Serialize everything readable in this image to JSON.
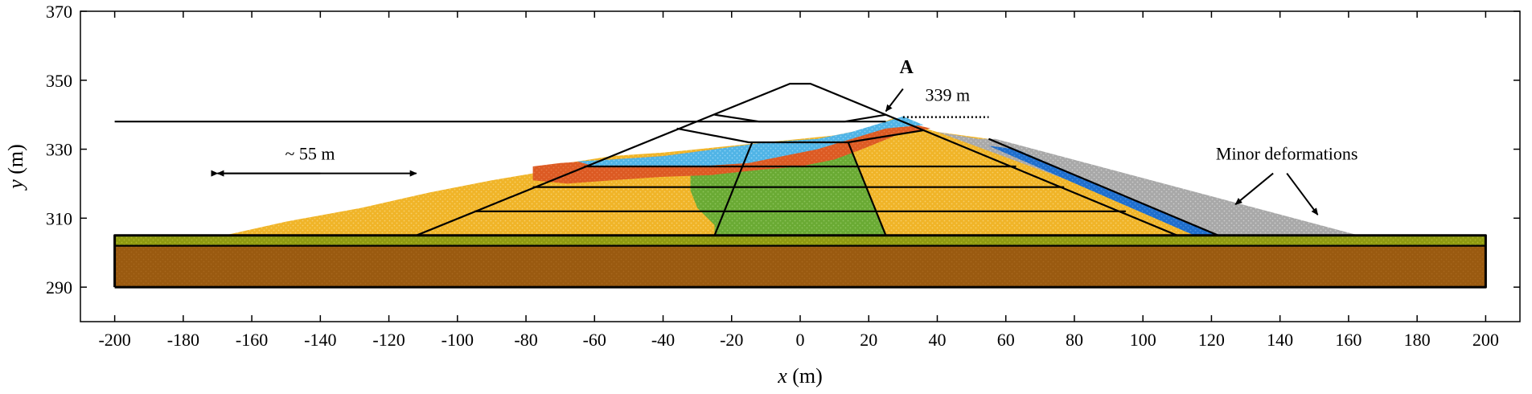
{
  "chart_data": {
    "type": "scatter",
    "title": "",
    "xlabel": {
      "var": "x",
      "unit": " (m)"
    },
    "ylabel": {
      "var": "y",
      "unit": " (m)"
    },
    "xlim": [
      -210,
      210
    ],
    "ylim": [
      280,
      370
    ],
    "xticks": [
      "-200",
      "-180",
      "-160",
      "-140",
      "-120",
      "-100",
      "-80",
      "-60",
      "-40",
      "-20",
      "0",
      "20",
      "40",
      "60",
      "80",
      "100",
      "120",
      "140",
      "160",
      "180",
      "200"
    ],
    "yticks": [
      "290",
      "310",
      "330",
      "350",
      "370"
    ],
    "grid": false,
    "colors": {
      "foundation": "#9a5a10",
      "foundation_stripe": "#b07028",
      "bedding": "#8f9a10",
      "shell": "#f0b428",
      "core": "#6aaa34",
      "filter_red": "#dc5a23",
      "filter_blue": "#50b4e6",
      "drain_blue": "#1e6ecc",
      "downstream_gray": "#a8a8a8",
      "outline": "#000000"
    },
    "regions": [
      {
        "name": "foundation",
        "fill": "foundation",
        "points": [
          [
            -200,
            290
          ],
          [
            200,
            290
          ],
          [
            200,
            302
          ],
          [
            -200,
            302
          ]
        ]
      },
      {
        "name": "bedding-layer",
        "fill": "bedding",
        "points": [
          [
            -200,
            302
          ],
          [
            200,
            302
          ],
          [
            200,
            305
          ],
          [
            -200,
            305
          ]
        ]
      },
      {
        "name": "upstream-slide-mass",
        "fill": "shell",
        "points": [
          [
            -168,
            305
          ],
          [
            -150,
            309
          ],
          [
            -128,
            313
          ],
          [
            -108,
            317.5
          ],
          [
            -90,
            321
          ],
          [
            -78,
            323
          ],
          [
            -72,
            324
          ],
          [
            -68,
            326
          ],
          [
            -55,
            328
          ],
          [
            -40,
            329
          ],
          [
            -30,
            330
          ],
          [
            -20,
            331
          ],
          [
            -10,
            332
          ],
          [
            0,
            333
          ],
          [
            10,
            334
          ],
          [
            20,
            336
          ],
          [
            27,
            339
          ],
          [
            33,
            337
          ],
          [
            40,
            335
          ],
          [
            55,
            333
          ],
          [
            122,
            305
          ]
        ]
      },
      {
        "name": "downstream-gray-zone",
        "fill": "downstream_gray",
        "points": [
          [
            40,
            335
          ],
          [
            52,
            333
          ],
          [
            57,
            333
          ],
          [
            163,
            305
          ],
          [
            122,
            305
          ]
        ]
      },
      {
        "name": "downstream-blue-drain",
        "fill": "drain_blue",
        "points": [
          [
            55,
            331
          ],
          [
            63,
            330
          ],
          [
            122,
            305
          ],
          [
            115,
            305
          ]
        ]
      },
      {
        "name": "central-core",
        "fill": "core",
        "points": [
          [
            -25,
            305
          ],
          [
            25,
            305
          ],
          [
            14,
            332
          ],
          [
            0,
            331
          ],
          [
            -16,
            330
          ],
          [
            -25,
            328
          ],
          [
            -32,
            324
          ],
          [
            -32,
            318
          ],
          [
            -30,
            313
          ],
          [
            -25,
            308
          ]
        ]
      },
      {
        "name": "upstream-filter-orange",
        "fill": "filter_red",
        "points": [
          [
            -78,
            325
          ],
          [
            -70,
            326
          ],
          [
            -55,
            327
          ],
          [
            -40,
            328
          ],
          [
            -25,
            330
          ],
          [
            -10,
            331
          ],
          [
            5,
            332
          ],
          [
            15,
            334
          ],
          [
            25,
            337
          ],
          [
            30,
            338
          ],
          [
            38,
            336
          ],
          [
            28,
            334
          ],
          [
            18,
            330
          ],
          [
            10,
            327
          ],
          [
            0,
            325
          ],
          [
            -12,
            324
          ],
          [
            -26,
            322.5
          ],
          [
            -40,
            322
          ],
          [
            -55,
            321
          ],
          [
            -68,
            320
          ],
          [
            -78,
            321
          ]
        ]
      },
      {
        "name": "upstream-filter-blue",
        "fill": "filter_blue",
        "points": [
          [
            -65,
            326.5
          ],
          [
            -55,
            327
          ],
          [
            -40,
            328
          ],
          [
            -25,
            330
          ],
          [
            -10,
            332
          ],
          [
            5,
            333
          ],
          [
            15,
            335
          ],
          [
            25,
            338
          ],
          [
            30,
            339.5
          ],
          [
            36,
            337
          ],
          [
            25,
            336
          ],
          [
            15,
            333
          ],
          [
            5,
            330
          ],
          [
            -5,
            328
          ],
          [
            -15,
            326
          ],
          [
            -30,
            325
          ],
          [
            -45,
            325
          ],
          [
            -60,
            325
          ]
        ]
      }
    ],
    "outline": [
      {
        "name": "foundation-border",
        "points": [
          [
            -200,
            290
          ],
          [
            200,
            290
          ],
          [
            200,
            305
          ],
          [
            -200,
            305
          ],
          [
            -200,
            290
          ]
        ]
      },
      {
        "name": "bedding-line",
        "points": [
          [
            -200,
            302
          ],
          [
            200,
            302
          ]
        ]
      },
      {
        "name": "upstream-original-slope",
        "points": [
          [
            -112,
            305
          ],
          [
            -3,
            349
          ],
          [
            3,
            349
          ],
          [
            36,
            335.5
          ]
        ]
      },
      {
        "name": "downstream-original-slope",
        "points": [
          [
            36,
            335.5
          ],
          [
            110,
            305
          ]
        ]
      },
      {
        "name": "reservoir-water-level",
        "points": [
          [
            -200,
            338
          ],
          [
            25,
            338
          ]
        ]
      },
      {
        "name": "crest-zone-lower",
        "points": [
          [
            -36,
            336
          ],
          [
            -15,
            332
          ],
          [
            14,
            332
          ],
          [
            36,
            335.5
          ]
        ]
      },
      {
        "name": "crest-zone-upper",
        "points": [
          [
            -25,
            340
          ],
          [
            -12,
            338
          ],
          [
            13,
            338
          ],
          [
            25,
            340
          ]
        ]
      },
      {
        "name": "core-left-boundary",
        "points": [
          [
            -25,
            305
          ],
          [
            -14,
            332
          ]
        ]
      },
      {
        "name": "core-right-boundary",
        "points": [
          [
            25,
            305
          ],
          [
            14,
            332
          ]
        ]
      },
      {
        "name": "lift-line-1",
        "points": [
          [
            -95,
            312
          ],
          [
            95,
            312
          ]
        ]
      },
      {
        "name": "lift-line-2",
        "points": [
          [
            -78,
            319
          ],
          [
            77,
            319
          ]
        ]
      },
      {
        "name": "lift-line-3",
        "points": [
          [
            -63,
            325
          ],
          [
            63,
            325
          ]
        ]
      },
      {
        "name": "filter-line",
        "points": [
          [
            55,
            333
          ],
          [
            122,
            305
          ]
        ]
      }
    ],
    "annotations": {
      "label_a": "A",
      "label_339": "339 m",
      "label_55": "~ 55 m",
      "label_minor": "Minor deformations"
    }
  }
}
